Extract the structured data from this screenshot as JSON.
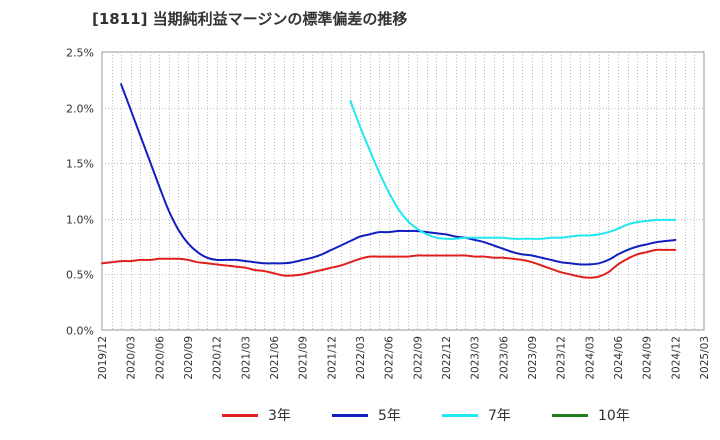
{
  "title": "[1811]  当期純利益マージンの標準偏差の推移",
  "chart_data": {
    "type": "line",
    "title": "[1811]  当期純利益マージンの標準偏差の推移",
    "xlabel": "",
    "ylabel": "",
    "ylim": [
      0,
      2.5
    ],
    "y_unit": "%",
    "y_ticks": [
      "0.0%",
      "0.5%",
      "1.0%",
      "1.5%",
      "2.0%",
      "2.5%"
    ],
    "x_ticks": [
      "2019/12",
      "2020/03",
      "2020/06",
      "2020/09",
      "2020/12",
      "2021/03",
      "2021/06",
      "2021/09",
      "2021/12",
      "2022/03",
      "2022/06",
      "2022/09",
      "2022/12",
      "2023/03",
      "2023/06",
      "2023/09",
      "2023/12",
      "2024/03",
      "2024/06",
      "2024/09",
      "2024/12",
      "2025/03"
    ],
    "grid": true,
    "legend_position": "bottom",
    "series": [
      {
        "name": "3年",
        "color": "#e02020",
        "points": [
          [
            "2019/12",
            0.6
          ],
          [
            "2020/01",
            0.61
          ],
          [
            "2020/02",
            0.62
          ],
          [
            "2020/03",
            0.62
          ],
          [
            "2020/04",
            0.63
          ],
          [
            "2020/05",
            0.63
          ],
          [
            "2020/06",
            0.64
          ],
          [
            "2020/07",
            0.64
          ],
          [
            "2020/08",
            0.64
          ],
          [
            "2020/09",
            0.63
          ],
          [
            "2020/10",
            0.61
          ],
          [
            "2020/11",
            0.6
          ],
          [
            "2020/12",
            0.59
          ],
          [
            "2021/01",
            0.58
          ],
          [
            "2021/02",
            0.57
          ],
          [
            "2021/03",
            0.56
          ],
          [
            "2021/04",
            0.54
          ],
          [
            "2021/05",
            0.53
          ],
          [
            "2021/06",
            0.51
          ],
          [
            "2021/07",
            0.49
          ],
          [
            "2021/08",
            0.49
          ],
          [
            "2021/09",
            0.5
          ],
          [
            "2021/10",
            0.52
          ],
          [
            "2021/11",
            0.54
          ],
          [
            "2021/12",
            0.56
          ],
          [
            "2022/01",
            0.58
          ],
          [
            "2022/02",
            0.61
          ],
          [
            "2022/03",
            0.64
          ],
          [
            "2022/04",
            0.66
          ],
          [
            "2022/05",
            0.66
          ],
          [
            "2022/06",
            0.66
          ],
          [
            "2022/07",
            0.66
          ],
          [
            "2022/08",
            0.66
          ],
          [
            "2022/09",
            0.67
          ],
          [
            "2022/10",
            0.67
          ],
          [
            "2022/11",
            0.67
          ],
          [
            "2022/12",
            0.67
          ],
          [
            "2023/01",
            0.67
          ],
          [
            "2023/02",
            0.67
          ],
          [
            "2023/03",
            0.66
          ],
          [
            "2023/04",
            0.66
          ],
          [
            "2023/05",
            0.65
          ],
          [
            "2023/06",
            0.65
          ],
          [
            "2023/07",
            0.64
          ],
          [
            "2023/08",
            0.63
          ],
          [
            "2023/09",
            0.61
          ],
          [
            "2023/10",
            0.58
          ],
          [
            "2023/11",
            0.55
          ],
          [
            "2023/12",
            0.52
          ],
          [
            "2024/01",
            0.5
          ],
          [
            "2024/02",
            0.48
          ],
          [
            "2024/03",
            0.47
          ],
          [
            "2024/04",
            0.48
          ],
          [
            "2024/05",
            0.52
          ],
          [
            "2024/06",
            0.59
          ],
          [
            "2024/07",
            0.64
          ],
          [
            "2024/08",
            0.68
          ],
          [
            "2024/09",
            0.7
          ],
          [
            "2024/10",
            0.72
          ],
          [
            "2024/11",
            0.72
          ],
          [
            "2024/12",
            0.72
          ]
        ]
      },
      {
        "name": "5年",
        "color": "#1020c0",
        "points": [
          [
            "2020/02",
            2.21
          ],
          [
            "2020/03",
            1.98
          ],
          [
            "2020/04",
            1.75
          ],
          [
            "2020/05",
            1.52
          ],
          [
            "2020/06",
            1.29
          ],
          [
            "2020/07",
            1.07
          ],
          [
            "2020/08",
            0.9
          ],
          [
            "2020/09",
            0.78
          ],
          [
            "2020/10",
            0.7
          ],
          [
            "2020/11",
            0.65
          ],
          [
            "2020/12",
            0.63
          ],
          [
            "2021/01",
            0.63
          ],
          [
            "2021/02",
            0.63
          ],
          [
            "2021/03",
            0.62
          ],
          [
            "2021/04",
            0.61
          ],
          [
            "2021/05",
            0.6
          ],
          [
            "2021/06",
            0.6
          ],
          [
            "2021/07",
            0.6
          ],
          [
            "2021/08",
            0.61
          ],
          [
            "2021/09",
            0.63
          ],
          [
            "2021/10",
            0.65
          ],
          [
            "2021/11",
            0.68
          ],
          [
            "2021/12",
            0.72
          ],
          [
            "2022/01",
            0.76
          ],
          [
            "2022/02",
            0.8
          ],
          [
            "2022/03",
            0.84
          ],
          [
            "2022/04",
            0.86
          ],
          [
            "2022/05",
            0.88
          ],
          [
            "2022/06",
            0.88
          ],
          [
            "2022/07",
            0.89
          ],
          [
            "2022/08",
            0.89
          ],
          [
            "2022/09",
            0.89
          ],
          [
            "2022/10",
            0.88
          ],
          [
            "2022/11",
            0.87
          ],
          [
            "2022/12",
            0.86
          ],
          [
            "2023/01",
            0.84
          ],
          [
            "2023/02",
            0.83
          ],
          [
            "2023/03",
            0.81
          ],
          [
            "2023/04",
            0.79
          ],
          [
            "2023/05",
            0.76
          ],
          [
            "2023/06",
            0.73
          ],
          [
            "2023/07",
            0.7
          ],
          [
            "2023/08",
            0.68
          ],
          [
            "2023/09",
            0.67
          ],
          [
            "2023/10",
            0.65
          ],
          [
            "2023/11",
            0.63
          ],
          [
            "2023/12",
            0.61
          ],
          [
            "2024/01",
            0.6
          ],
          [
            "2024/02",
            0.59
          ],
          [
            "2024/03",
            0.59
          ],
          [
            "2024/04",
            0.6
          ],
          [
            "2024/05",
            0.63
          ],
          [
            "2024/06",
            0.68
          ],
          [
            "2024/07",
            0.72
          ],
          [
            "2024/08",
            0.75
          ],
          [
            "2024/09",
            0.77
          ],
          [
            "2024/10",
            0.79
          ],
          [
            "2024/11",
            0.8
          ],
          [
            "2024/12",
            0.81
          ]
        ]
      },
      {
        "name": "7年",
        "color": "#20e8f0",
        "points": [
          [
            "2022/02",
            2.06
          ],
          [
            "2022/03",
            1.83
          ],
          [
            "2022/04",
            1.62
          ],
          [
            "2022/05",
            1.42
          ],
          [
            "2022/06",
            1.24
          ],
          [
            "2022/07",
            1.09
          ],
          [
            "2022/08",
            0.98
          ],
          [
            "2022/09",
            0.91
          ],
          [
            "2022/10",
            0.86
          ],
          [
            "2022/11",
            0.83
          ],
          [
            "2022/12",
            0.82
          ],
          [
            "2023/01",
            0.82
          ],
          [
            "2023/02",
            0.83
          ],
          [
            "2023/03",
            0.83
          ],
          [
            "2023/04",
            0.83
          ],
          [
            "2023/05",
            0.83
          ],
          [
            "2023/06",
            0.83
          ],
          [
            "2023/07",
            0.82
          ],
          [
            "2023/08",
            0.82
          ],
          [
            "2023/09",
            0.82
          ],
          [
            "2023/10",
            0.82
          ],
          [
            "2023/11",
            0.83
          ],
          [
            "2023/12",
            0.83
          ],
          [
            "2024/01",
            0.84
          ],
          [
            "2024/02",
            0.85
          ],
          [
            "2024/03",
            0.85
          ],
          [
            "2024/04",
            0.86
          ],
          [
            "2024/05",
            0.88
          ],
          [
            "2024/06",
            0.91
          ],
          [
            "2024/07",
            0.95
          ],
          [
            "2024/08",
            0.97
          ],
          [
            "2024/09",
            0.98
          ],
          [
            "2024/10",
            0.99
          ],
          [
            "2024/11",
            0.99
          ],
          [
            "2024/12",
            0.99
          ]
        ]
      },
      {
        "name": "10年",
        "color": "#208020",
        "points": []
      }
    ]
  }
}
